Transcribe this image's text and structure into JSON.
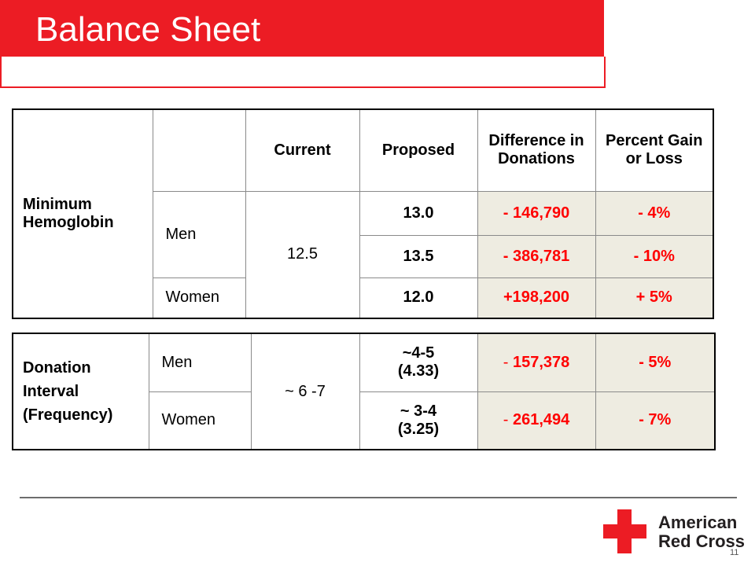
{
  "slide": {
    "title": "Balance Sheet",
    "page_number": "11"
  },
  "colors": {
    "brand_red": "#ec1c24",
    "cell_shade": "#eeece1",
    "value_red": "#ff0000"
  },
  "table1": {
    "row_label": "Minimum Hemoglobin",
    "headers": [
      "",
      "Current",
      "Proposed",
      "Difference in Donations",
      "Percent Gain or Loss"
    ],
    "current": "12.5",
    "rows": [
      {
        "group": "Men",
        "proposed": "13.0",
        "difference": "- 146,790",
        "percent": "- 4%"
      },
      {
        "group": "",
        "proposed": "13.5",
        "difference": "- 386,781",
        "percent": "- 10%"
      },
      {
        "group": "Women",
        "proposed": "12.0",
        "difference": "+198,200",
        "percent": "+ 5%"
      }
    ]
  },
  "table2": {
    "row_label": "Donation Interval (Frequency)",
    "current": "~ 6 -7",
    "rows": [
      {
        "group": "Men",
        "proposed_line1": "~4-5",
        "proposed_line2": "(4.33)",
        "difference_sign": "-",
        "difference_value": " 157,378",
        "percent": "- 5%"
      },
      {
        "group": "Women",
        "proposed_line1": "~ 3-4",
        "proposed_line2": "(3.25)",
        "difference_sign": "-",
        "difference_value": " 261,494",
        "percent": "- 7%"
      }
    ]
  },
  "logo": {
    "line1": "American",
    "line2": "Red Cross"
  }
}
